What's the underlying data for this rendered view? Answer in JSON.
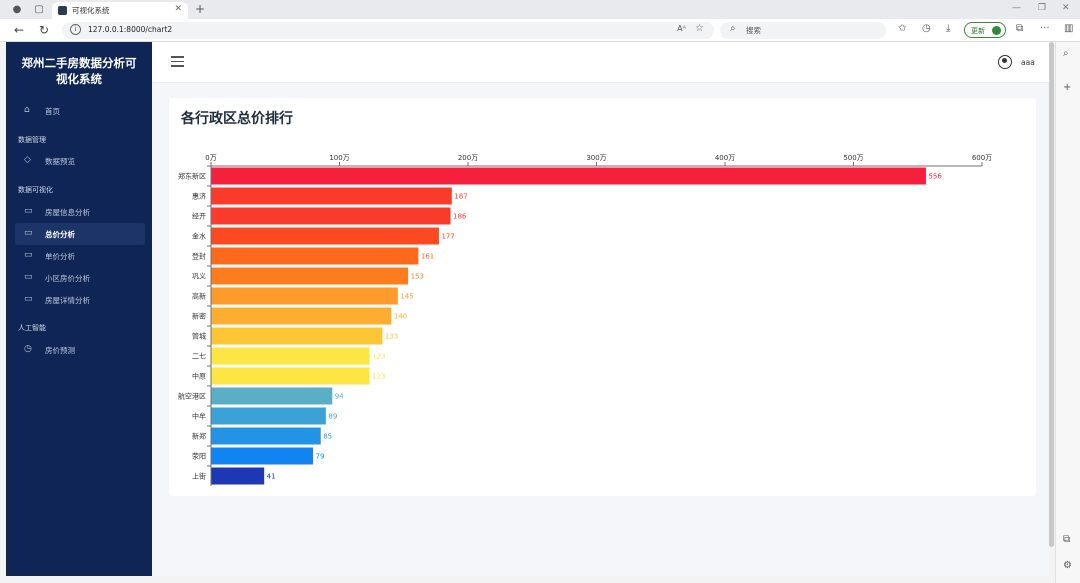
{
  "browser": {
    "tab_title": "可视化系统",
    "url": "127.0.0.1:8000/chart2",
    "search_placeholder": "搜索",
    "update_label": "更新"
  },
  "sidebar": {
    "logo": "郑州二手房数据分析可视化系统",
    "home": {
      "label": "首页",
      "icon": "home-icon"
    },
    "groups": [
      {
        "title": "数据管理",
        "items": [
          {
            "label": "数据预览",
            "icon": "tag-icon",
            "active": false
          }
        ]
      },
      {
        "title": "数据可视化",
        "items": [
          {
            "label": "房屋信息分析",
            "icon": "monitor-icon",
            "active": false
          },
          {
            "label": "总价分析",
            "icon": "monitor-icon",
            "active": true
          },
          {
            "label": "单价分析",
            "icon": "monitor-icon",
            "active": false
          },
          {
            "label": "小区房价分析",
            "icon": "monitor-icon",
            "active": false
          },
          {
            "label": "房屋详情分析",
            "icon": "monitor-icon",
            "active": false
          }
        ]
      },
      {
        "title": "人工智能",
        "items": [
          {
            "label": "房价预测",
            "icon": "clock-icon",
            "active": false
          }
        ]
      }
    ]
  },
  "header": {
    "username": "aaa"
  },
  "card": {
    "title": "各行政区总价排行"
  },
  "chart_data": {
    "type": "bar",
    "orientation": "horizontal",
    "title": "各行政区总价排行",
    "categories": [
      "郑东新区",
      "惠济",
      "经开",
      "金水",
      "登封",
      "巩义",
      "高新",
      "新密",
      "管城",
      "二七",
      "中原",
      "航空港区",
      "中牟",
      "新郑",
      "荥阳",
      "上街"
    ],
    "values": [
      556,
      187,
      186,
      177,
      161,
      153,
      145,
      140,
      133,
      123,
      123,
      94,
      89,
      85,
      79,
      41
    ],
    "x_ticks": [
      "0万",
      "100万",
      "200万",
      "300万",
      "400万",
      "500万",
      "600万"
    ],
    "xlim": [
      0,
      600
    ],
    "x_axis_position": "top",
    "grid": false,
    "colors": [
      "#f5203c",
      "#fa3b2c",
      "#fa3b2c",
      "#fb4a22",
      "#fd6a1b",
      "#fd7c1d",
      "#fe9b2a",
      "#fdae31",
      "#fec634",
      "#fde643",
      "#fde643",
      "#5aaec5",
      "#3ba1d6",
      "#2393e6",
      "#1084f0",
      "#1e37b4"
    ]
  }
}
